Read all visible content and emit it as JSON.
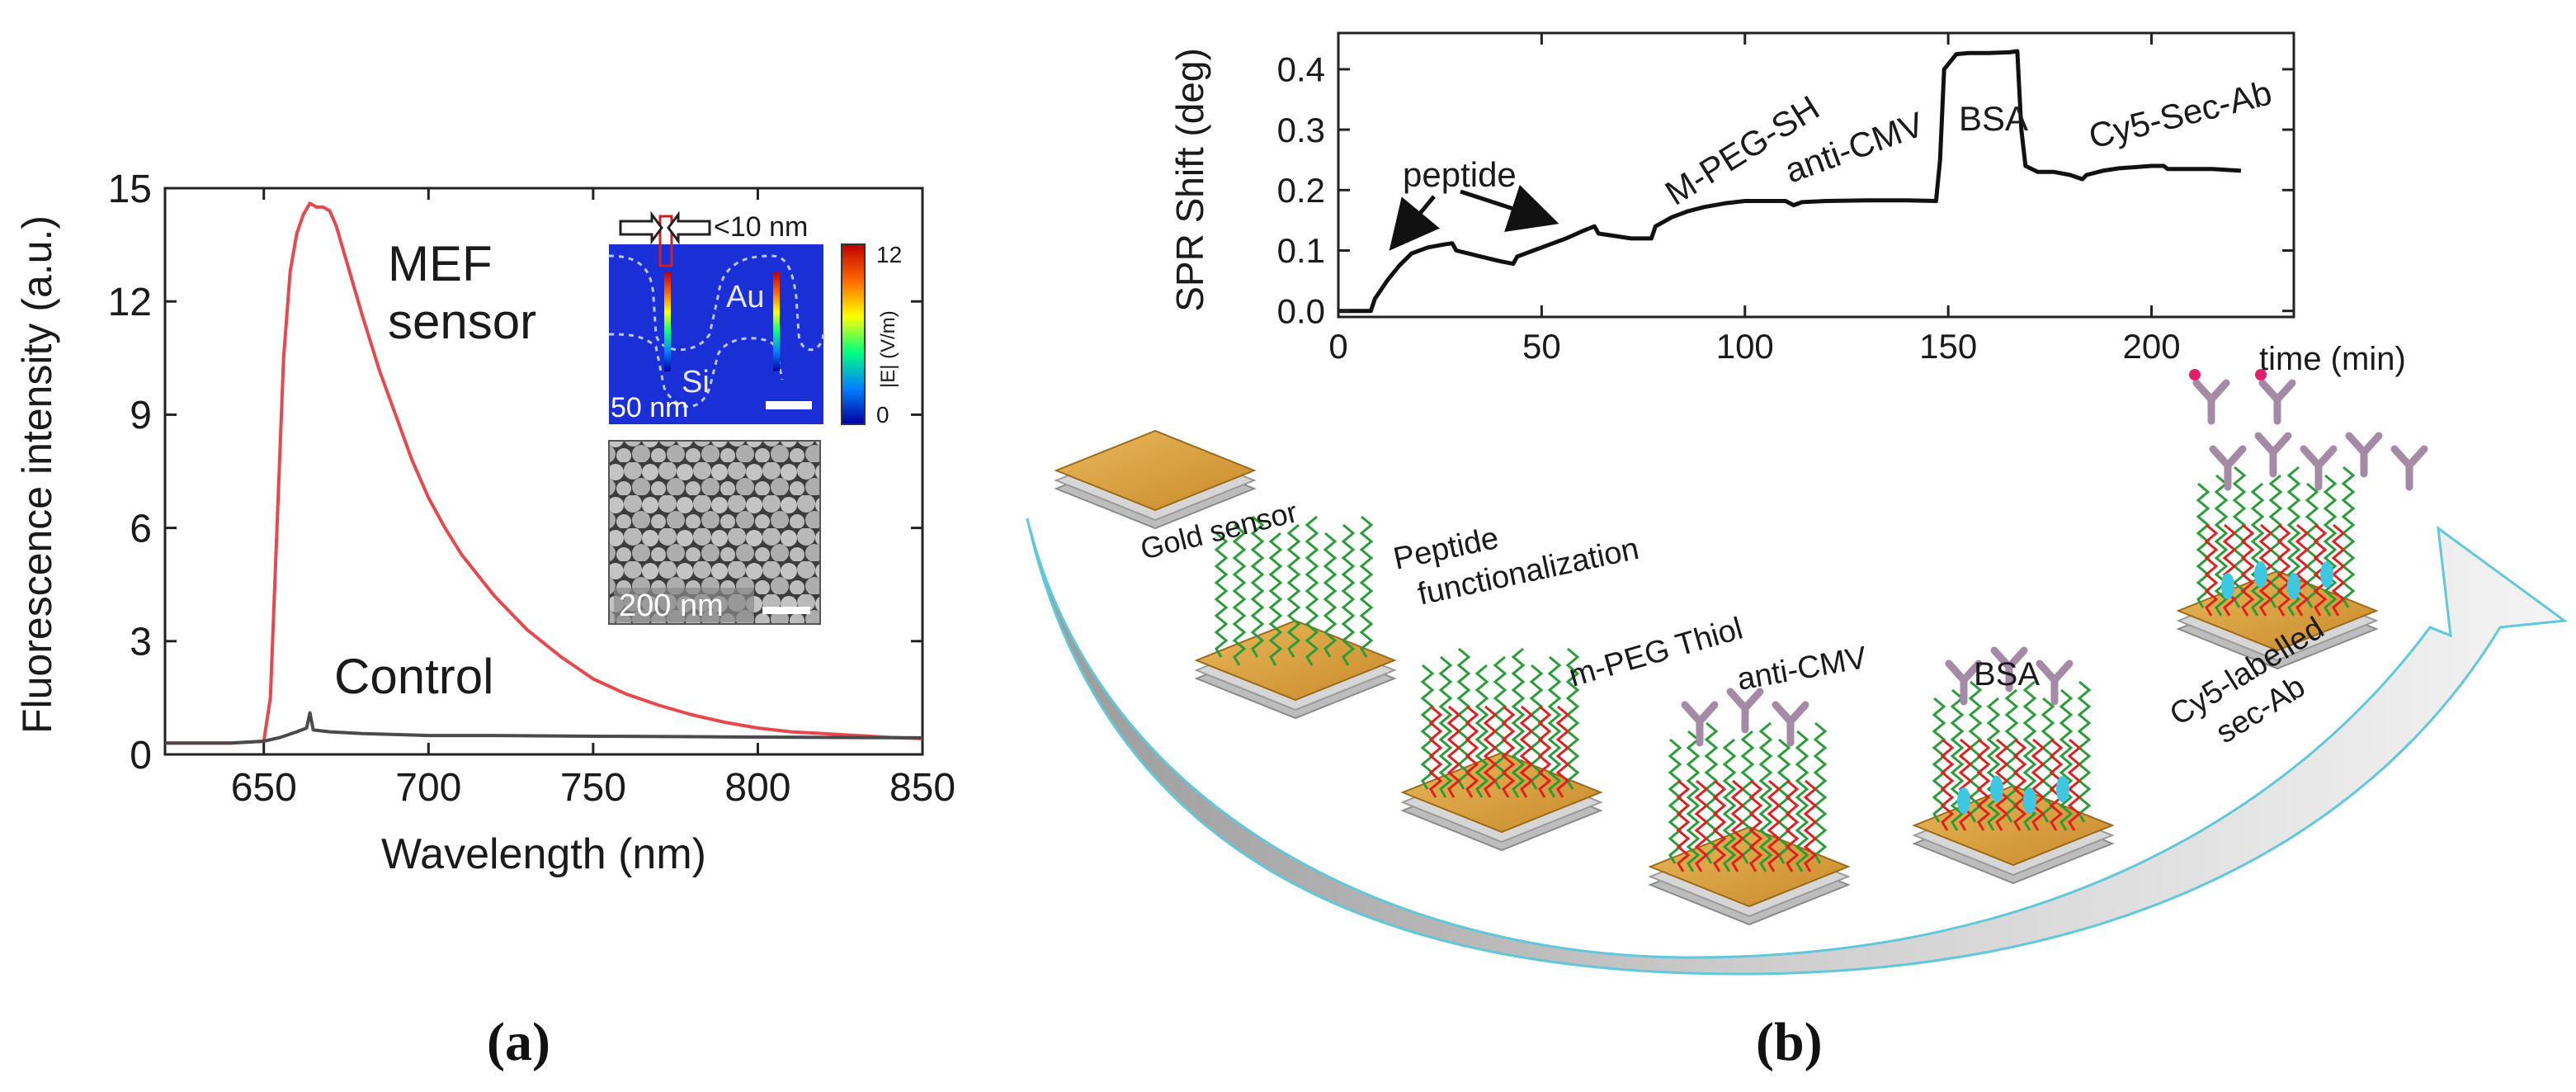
{
  "chart_data": [
    {
      "type": "line",
      "panel": "(a)",
      "xlabel": "Wavelength (nm)",
      "ylabel": "Fluorescence intensity (a.u.)",
      "xlim": [
        620,
        850
      ],
      "ylim": [
        0,
        15
      ],
      "xticks": [
        650,
        700,
        750,
        800,
        850
      ],
      "yticks": [
        0,
        3,
        6,
        9,
        12,
        15
      ],
      "series": [
        {
          "name": "MEF sensor",
          "label_lines": [
            "MEF",
            "sensor"
          ],
          "color": "#e8474c",
          "x": [
            620,
            640,
            650,
            652,
            654,
            656,
            658,
            660,
            662,
            664,
            666,
            668,
            670,
            672,
            674,
            676,
            678,
            680,
            685,
            690,
            695,
            700,
            705,
            710,
            720,
            730,
            740,
            750,
            760,
            770,
            780,
            790,
            800,
            810,
            820,
            830,
            840,
            850
          ],
          "y": [
            0.3,
            0.3,
            0.35,
            1.5,
            6.0,
            10.5,
            12.8,
            13.8,
            14.3,
            14.6,
            14.5,
            14.5,
            14.4,
            14.0,
            13.4,
            12.8,
            12.2,
            11.6,
            10.2,
            9.0,
            7.8,
            6.8,
            6.0,
            5.3,
            4.2,
            3.3,
            2.6,
            2.0,
            1.6,
            1.3,
            1.05,
            0.85,
            0.7,
            0.6,
            0.55,
            0.5,
            0.45,
            0.42
          ]
        },
        {
          "name": "Control",
          "label_lines": [
            "Control"
          ],
          "color": "#4a4a4a",
          "x": [
            620,
            640,
            650,
            655,
            660,
            663,
            664,
            665,
            670,
            680,
            700,
            720,
            750,
            780,
            800,
            820,
            850
          ],
          "y": [
            0.3,
            0.3,
            0.35,
            0.45,
            0.6,
            0.7,
            1.1,
            0.65,
            0.6,
            0.55,
            0.5,
            0.5,
            0.48,
            0.47,
            0.46,
            0.45,
            0.44
          ]
        }
      ],
      "inset_field": {
        "gap_label": "<10 nm",
        "labels": [
          "Au",
          "Si"
        ],
        "scale_bar": "50 nm",
        "colorbar_ticks": [
          "12",
          "0"
        ],
        "colorbar_label": "|E| (V/m)"
      },
      "inset_sem": {
        "scale_bar": "200 nm"
      }
    },
    {
      "type": "line",
      "panel": "(b)",
      "xlabel": "time (min)",
      "ylabel": "SPR Shift (deg)",
      "xlim": [
        0,
        235
      ],
      "ylim": [
        -0.01,
        0.46
      ],
      "xticks": [
        0,
        50,
        100,
        150,
        200
      ],
      "yticks": [
        0.0,
        0.1,
        0.2,
        0.3,
        0.4
      ],
      "ytick_labels": [
        "0.0",
        "0.1",
        "0.2",
        "0.3",
        "0.4"
      ],
      "series": [
        {
          "name": "SPR",
          "color": "#111111",
          "x": [
            0,
            8,
            9,
            10,
            12,
            15,
            18,
            22,
            26,
            28,
            29,
            35,
            40,
            43,
            44,
            48,
            52,
            56,
            60,
            63,
            64,
            68,
            72,
            77,
            78,
            82,
            86,
            90,
            95,
            100,
            105,
            110,
            112,
            114,
            120,
            130,
            140,
            147,
            148,
            149,
            152,
            155,
            160,
            165,
            167,
            168,
            169,
            172,
            176,
            180,
            183,
            184,
            188,
            192,
            196,
            200,
            203,
            204,
            208,
            215,
            222
          ],
          "y": [
            0.0,
            0.0,
            0.02,
            0.03,
            0.05,
            0.075,
            0.095,
            0.105,
            0.11,
            0.112,
            0.1,
            0.09,
            0.082,
            0.078,
            0.09,
            0.1,
            0.11,
            0.12,
            0.132,
            0.14,
            0.128,
            0.124,
            0.12,
            0.12,
            0.14,
            0.155,
            0.165,
            0.172,
            0.178,
            0.182,
            0.182,
            0.182,
            0.175,
            0.18,
            0.182,
            0.183,
            0.183,
            0.182,
            0.25,
            0.4,
            0.425,
            0.427,
            0.427,
            0.428,
            0.43,
            0.3,
            0.24,
            0.23,
            0.23,
            0.225,
            0.218,
            0.225,
            0.232,
            0.236,
            0.238,
            0.24,
            0.24,
            0.235,
            0.235,
            0.235,
            0.232
          ]
        }
      ],
      "annotations": [
        "peptide",
        "M-PEG-SH",
        "anti-CMV",
        "BSA",
        "Cy5-Sec-Ab"
      ]
    }
  ],
  "schematic": {
    "steps": [
      "Gold sensor",
      "Peptide\nfunctionalization",
      "m-PEG Thiol",
      "anti-CMV",
      "BSA",
      "Cy5-labelled\nsec-Ab"
    ],
    "step_lines": [
      [
        "Gold sensor"
      ],
      [
        "Peptide",
        "functionalization"
      ],
      [
        "m-PEG Thiol"
      ],
      [
        "anti-CMV"
      ],
      [
        "BSA"
      ],
      [
        "Cy5-labelled",
        "sec-Ab"
      ]
    ]
  },
  "panel_labels": [
    "(a)",
    "(b)"
  ],
  "colors": {
    "mef": "#e8474c",
    "control": "#4a4a4a",
    "gold": "#d9a441",
    "peptide": "#2a9d3a",
    "peg": "#e02020",
    "antibody": "#a58aa6",
    "bsa": "#3ec7e0",
    "cy5": "#e0206a"
  }
}
